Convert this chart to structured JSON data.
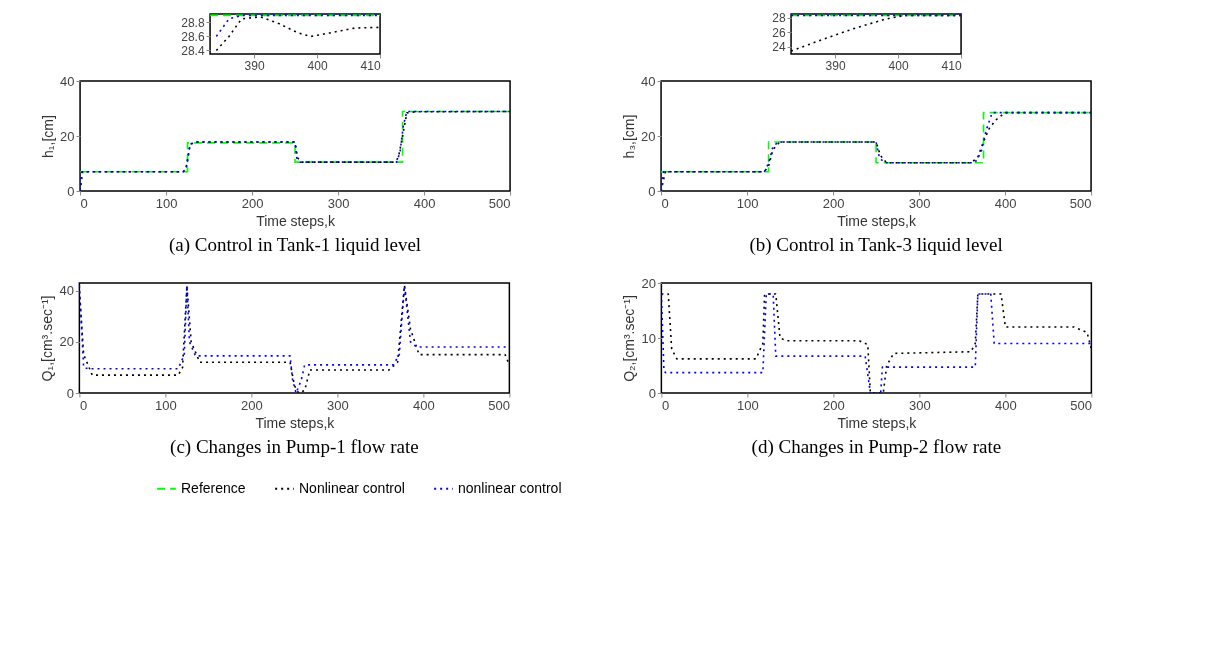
{
  "chart_data": [
    {
      "type": "line",
      "title": "(a) Control in Tank-1 liquid level",
      "xlabel": "Time steps,k",
      "ylabel": "h₁,[cm]",
      "xlim": [
        0,
        500
      ],
      "ylim": [
        0,
        40
      ],
      "xticks": [
        0,
        100,
        200,
        300,
        400,
        500
      ],
      "yticks": [
        0,
        20,
        40
      ],
      "grid": false,
      "legend": "bottom",
      "series": [
        {
          "name": "Reference",
          "color": "#00ff00",
          "line_style": "dashed",
          "x": [
            0,
            125,
            125,
            250,
            250,
            375,
            375,
            500
          ],
          "values": [
            7,
            7,
            17.5,
            17.5,
            10.5,
            10.5,
            28.9,
            28.9
          ]
        },
        {
          "name": "Nonlinear control",
          "color": "#000000",
          "line_style": "dotted",
          "x": [
            0,
            3,
            120,
            123,
            128,
            135,
            250,
            253,
            258,
            365,
            370,
            375,
            380,
            390,
            500
          ],
          "values": [
            0,
            7,
            7,
            8,
            17,
            17.8,
            17.8,
            12,
            10.5,
            10.5,
            12,
            20,
            28.4,
            28.8,
            28.9
          ]
        },
        {
          "name": "nonlinear control",
          "color": "#0000ff",
          "line_style": "dotted",
          "x": [
            0,
            2,
            120,
            124,
            128,
            133,
            250,
            252,
            256,
            368,
            372,
            376,
            380,
            500
          ],
          "values": [
            0,
            7,
            7,
            9,
            17,
            17.8,
            17.8,
            12,
            10.5,
            10.5,
            14,
            24,
            28.9,
            28.9
          ]
        }
      ]
    },
    {
      "type": "line",
      "xlim": [
        383,
        410
      ],
      "ylim": [
        28.35,
        28.92
      ],
      "xticks": [
        390,
        400,
        410
      ],
      "yticks": [
        28.4,
        28.6,
        28.8
      ],
      "grid": false,
      "series": [
        {
          "name": "Reference",
          "color": "#00ff00",
          "line_style": "dashed",
          "x": [
            383,
            410
          ],
          "values": [
            28.9,
            28.9
          ]
        },
        {
          "name": "Nonlinear control",
          "color": "#000000",
          "line_style": "dotted",
          "x": [
            384,
            386,
            388,
            391,
            394,
            397,
            399,
            402,
            406,
            410
          ],
          "values": [
            28.4,
            28.6,
            28.85,
            28.88,
            28.78,
            28.65,
            28.6,
            28.65,
            28.72,
            28.73
          ]
        },
        {
          "name": "nonlinear control",
          "color": "#0000ff",
          "line_style": "dotted",
          "x": [
            384,
            386,
            388,
            410
          ],
          "values": [
            28.6,
            28.85,
            28.9,
            28.9
          ]
        }
      ]
    },
    {
      "type": "line",
      "title": "(b) Control in Tank-3 liquid level",
      "xlabel": "Time steps,k",
      "ylabel": "h₃,[cm]",
      "xlim": [
        0,
        500
      ],
      "ylim": [
        0,
        40
      ],
      "xticks": [
        0,
        100,
        200,
        300,
        400,
        500
      ],
      "yticks": [
        0,
        20,
        40
      ],
      "grid": false,
      "series": [
        {
          "name": "Reference",
          "color": "#00ff00",
          "line_style": "dashed",
          "x": [
            0,
            125,
            125,
            250,
            250,
            375,
            375,
            500
          ],
          "values": [
            7,
            7,
            17.8,
            17.8,
            10.3,
            10.3,
            28.5,
            28.5
          ]
        },
        {
          "name": "Nonlinear control",
          "color": "#000000",
          "line_style": "dotted",
          "x": [
            0,
            5,
            120,
            125,
            130,
            138,
            250,
            255,
            262,
            360,
            368,
            375,
            382,
            390,
            400,
            500
          ],
          "values": [
            0,
            7,
            7,
            9,
            15,
            17.8,
            17.8,
            13,
            10.3,
            10.3,
            12,
            18,
            23,
            26,
            28.5,
            28.5
          ]
        },
        {
          "name": "nonlinear control",
          "color": "#0000ff",
          "line_style": "dotted",
          "x": [
            0,
            3,
            120,
            125,
            130,
            136,
            250,
            254,
            260,
            365,
            372,
            378,
            385,
            500
          ],
          "values": [
            0,
            7,
            7,
            10,
            16,
            17.8,
            17.8,
            12,
            10.3,
            10.3,
            14,
            22,
            28.5,
            28.5
          ]
        }
      ]
    },
    {
      "type": "line",
      "xlim": [
        383,
        410
      ],
      "ylim": [
        23,
        28.5
      ],
      "xticks": [
        390,
        400,
        410
      ],
      "yticks": [
        24,
        26,
        28
      ],
      "grid": false,
      "series": [
        {
          "name": "Reference",
          "color": "#00ff00",
          "line_style": "dashed",
          "x": [
            383,
            410
          ],
          "values": [
            28.3,
            28.3
          ]
        },
        {
          "name": "Nonlinear control",
          "color": "#000000",
          "line_style": "dotted",
          "x": [
            383,
            388,
            393,
            398,
            401,
            410
          ],
          "values": [
            23.4,
            25,
            26.5,
            27.8,
            28.3,
            28.3
          ]
        },
        {
          "name": "nonlinear control",
          "color": "#0000ff",
          "line_style": "dotted",
          "x": [
            383,
            410
          ],
          "values": [
            28.3,
            28.3
          ]
        }
      ]
    },
    {
      "type": "line",
      "title": "(c) Changes in Pump-1 flow rate",
      "xlabel": "Time steps,k",
      "ylabel": "Q₁,[cm³.sec⁻¹]",
      "xlim": [
        0,
        500
      ],
      "ylim": [
        0,
        43
      ],
      "xticks": [
        0,
        100,
        200,
        300,
        400,
        500
      ],
      "yticks": [
        0,
        20,
        40
      ],
      "grid": false,
      "series": [
        {
          "name": "Nonlinear control",
          "color": "#000000",
          "line_style": "dotted",
          "x": [
            0,
            5,
            15,
            115,
            120,
            125,
            130,
            140,
            245,
            250,
            255,
            262,
            268,
            360,
            370,
            378,
            385,
            395,
            495,
            500
          ],
          "values": [
            40,
            15,
            7,
            7,
            10,
            42,
            20,
            12,
            12,
            3,
            0,
            1,
            9,
            9,
            12,
            42,
            25,
            15,
            15,
            11
          ]
        },
        {
          "name": "nonlinear control",
          "color": "#0000ff",
          "line_style": "dotted",
          "x": [
            0,
            5,
            10,
            115,
            122,
            125,
            128,
            135,
            245,
            248,
            252,
            258,
            262,
            365,
            372,
            378,
            385,
            392,
            500
          ],
          "values": [
            42,
            10,
            9.5,
            9.5,
            15,
            42,
            20,
            14.5,
            14.5,
            5,
            0,
            5,
            11,
            11,
            15,
            42,
            20,
            18,
            18
          ]
        }
      ]
    },
    {
      "type": "line",
      "title": "(d) Changes in Pump-2 flow rate",
      "xlabel": "Time steps,k",
      "ylabel": "Q₂,[cm³.sec⁻¹]",
      "xlim": [
        0,
        500
      ],
      "ylim": [
        0,
        20
      ],
      "xticks": [
        0,
        100,
        200,
        300,
        400,
        500
      ],
      "yticks": [
        0,
        10,
        20
      ],
      "grid": false,
      "series": [
        {
          "name": "Nonlinear control",
          "color": "#000000",
          "line_style": "dotted",
          "x": [
            0,
            8,
            12,
            18,
            110,
            118,
            120,
            133,
            138,
            145,
            230,
            240,
            243,
            258,
            262,
            270,
            360,
            365,
            368,
            395,
            400,
            480,
            495,
            500
          ],
          "values": [
            18,
            18,
            8,
            6.2,
            6.2,
            9,
            18,
            18,
            10,
            9.5,
            9.5,
            8.8,
            0,
            0,
            5,
            7.2,
            7.5,
            9,
            18,
            18,
            12,
            12,
            11,
            8
          ]
        },
        {
          "name": "nonlinear control",
          "color": "#0000ff",
          "line_style": "dotted",
          "x": [
            0,
            3,
            5,
            118,
            122,
            130,
            133,
            237,
            243,
            255,
            257,
            365,
            368,
            383,
            387,
            500
          ],
          "values": [
            18,
            4,
            3.7,
            3.7,
            18,
            18,
            6.7,
            6.7,
            0,
            0,
            4.7,
            4.7,
            18,
            18,
            9,
            9
          ]
        }
      ]
    }
  ]
}
